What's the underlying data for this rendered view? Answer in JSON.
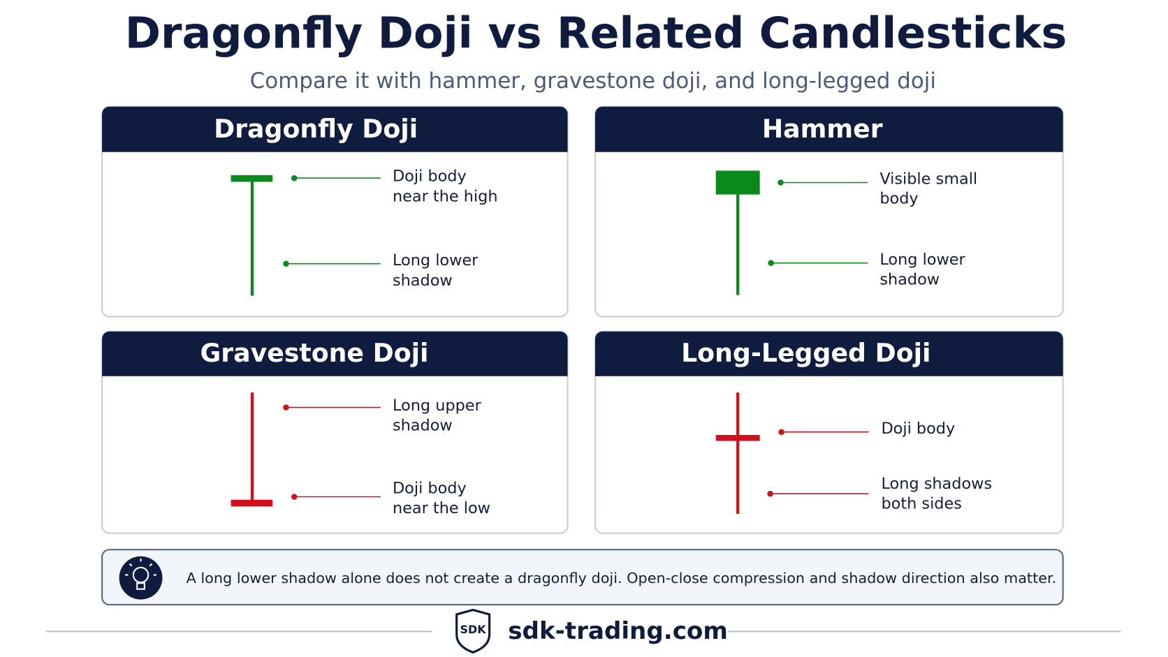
{
  "header": {
    "title": "Dragonfly Doji vs Related Candlesticks",
    "subtitle": "Compare it with hammer, gravestone doji, and long-legged doji"
  },
  "panels": [
    {
      "title": "Dragonfly Doji",
      "labels": [
        [
          "Doji body",
          "near the high"
        ],
        [
          "Long lower",
          "shadow"
        ]
      ]
    },
    {
      "title": "Hammer",
      "labels": [
        [
          "Visible small",
          "body"
        ],
        [
          "Long lower",
          "shadow"
        ]
      ]
    },
    {
      "title": "Gravestone Doji",
      "labels": [
        [
          "Long upper",
          "shadow"
        ],
        [
          "Doji body",
          "near the low"
        ]
      ]
    },
    {
      "title": "Long-Legged Doji",
      "labels": [
        [
          "Doji body"
        ],
        [
          "Long shadows",
          "both sides"
        ]
      ]
    }
  ],
  "note": "A long lower shadow alone does not create a dragonfly doji. Open-close compression and shadow direction also matter.",
  "footer": {
    "logo": "SDK",
    "site": "sdk-trading.com"
  }
}
